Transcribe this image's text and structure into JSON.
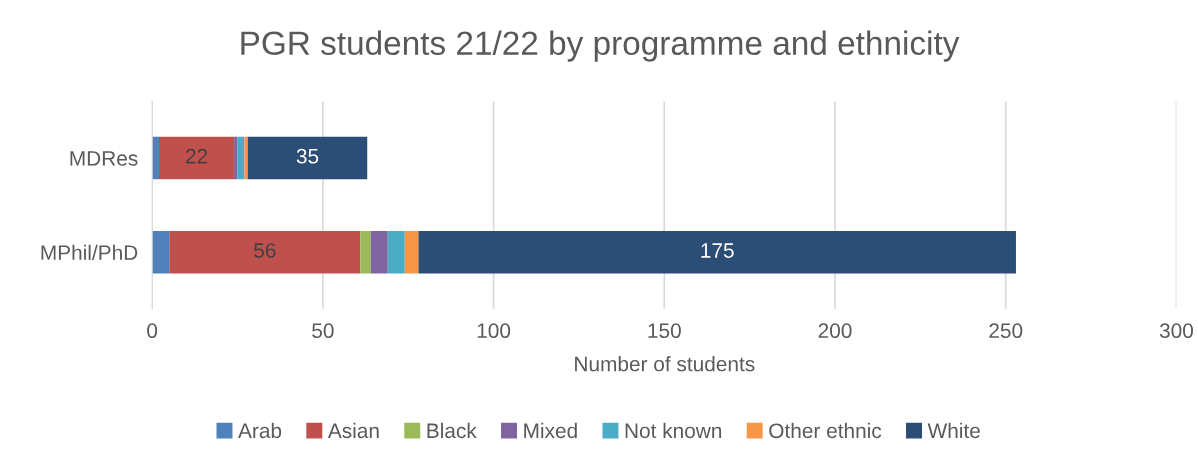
{
  "chart_data": {
    "type": "bar",
    "orientation": "horizontal",
    "stacked": true,
    "title": "PGR students 21/22 by programme and ethnicity",
    "xlabel": "Number of students",
    "categories": [
      "MDRes",
      "MPhil/PhD"
    ],
    "series": [
      {
        "name": "Arab",
        "color": "#4f81bd",
        "values": [
          2,
          5
        ],
        "value_labels": [
          null,
          null
        ]
      },
      {
        "name": "Asian",
        "color": "#c0504d",
        "values": [
          22,
          56
        ],
        "value_labels": [
          "22",
          "56"
        ]
      },
      {
        "name": "Black",
        "color": "#9bbb59",
        "values": [
          0,
          3
        ],
        "value_labels": [
          null,
          null
        ]
      },
      {
        "name": "Mixed",
        "color": "#8064a2",
        "values": [
          1,
          5
        ],
        "value_labels": [
          null,
          null
        ]
      },
      {
        "name": "Not known",
        "color": "#4bacc6",
        "values": [
          2,
          5
        ],
        "value_labels": [
          null,
          null
        ]
      },
      {
        "name": "Other ethnic",
        "color": "#f79646",
        "values": [
          1,
          4
        ],
        "value_labels": [
          null,
          null
        ]
      },
      {
        "name": "White",
        "color": "#2c4d75",
        "values": [
          35,
          175
        ],
        "value_labels": [
          "35",
          "175"
        ]
      }
    ],
    "xlim": [
      0,
      300
    ],
    "xticks": [
      0,
      50,
      100,
      150,
      200,
      250,
      300
    ],
    "grid": "x",
    "legend": "bottom"
  }
}
